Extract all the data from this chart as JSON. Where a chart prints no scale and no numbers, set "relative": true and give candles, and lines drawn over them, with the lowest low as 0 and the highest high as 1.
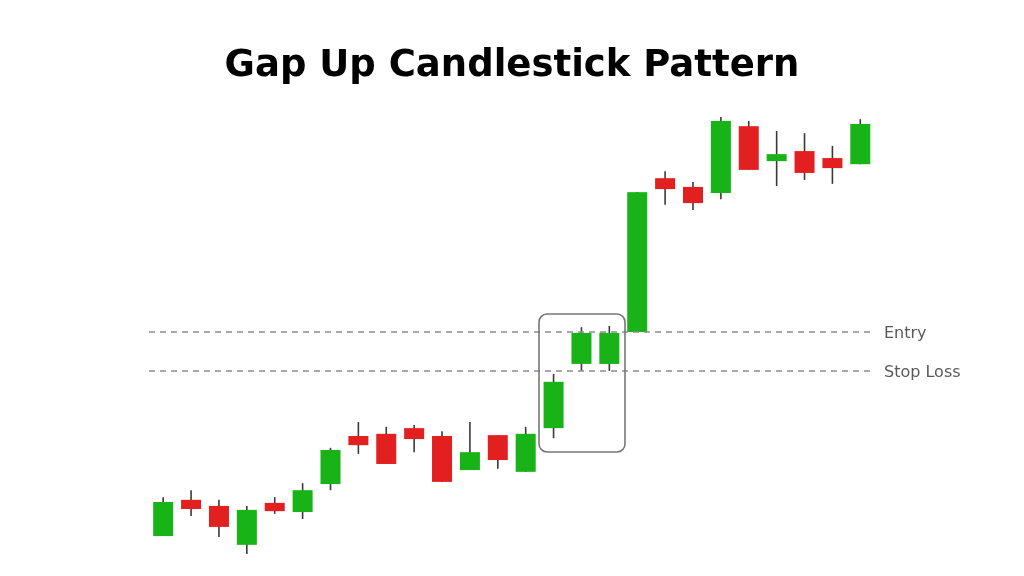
{
  "chart_data": {
    "type": "candlestick",
    "title": "Gap Up Candlestick Pattern",
    "relative": true,
    "categories": [
      null,
      null,
      null,
      null,
      null,
      null,
      null,
      null,
      null,
      null,
      null,
      null,
      null,
      null,
      null,
      null,
      null,
      null,
      null,
      null,
      null,
      null,
      null,
      null,
      null,
      null
    ],
    "ohlc": [
      [
        0.041,
        0.13,
        0.041,
        0.119
      ],
      [
        0.124,
        0.146,
        0.087,
        0.103
      ],
      [
        0.11,
        0.124,
        0.039,
        0.062
      ],
      [
        0.021,
        0.11,
        0,
        0.101
      ],
      [
        0.117,
        0.13,
        0.092,
        0.098
      ],
      [
        0.096,
        0.162,
        0.08,
        0.146
      ],
      [
        0.16,
        0.243,
        0.146,
        0.238
      ],
      [
        0.27,
        0.302,
        0.229,
        0.249
      ],
      [
        0.275,
        0.291,
        0.206,
        0.206
      ],
      [
        0.288,
        0.295,
        0.233,
        0.263
      ],
      [
        0.27,
        0.281,
        0.165,
        0.165
      ],
      [
        0.192,
        0.302,
        0.192,
        0.233
      ],
      [
        0.272,
        0.272,
        0.195,
        0.215
      ],
      [
        0.188,
        0.291,
        0.188,
        0.275
      ],
      [
        0.288,
        0.412,
        0.265,
        0.394
      ],
      [
        0.435,
        0.519,
        0.419,
        0.506
      ],
      [
        0.435,
        0.522,
        0.419,
        0.506
      ],
      [
        0.508,
        0.828,
        0.508,
        0.828
      ],
      [
        0.86,
        0.876,
        0.799,
        0.835
      ],
      [
        0.84,
        0.851,
        0.787,
        0.803
      ],
      [
        0.826,
        1,
        0.812,
        0.991
      ],
      [
        0.979,
        0.991,
        0.879,
        0.879
      ],
      [
        0.899,
        0.968,
        0.842,
        0.915
      ],
      [
        0.922,
        0.963,
        0.856,
        0.872
      ],
      [
        0.906,
        0.934,
        0.847,
        0.883
      ],
      [
        0.892,
        0.995,
        0.892,
        0.984
      ]
    ],
    "colors": [
      "#17b317",
      "#e32020",
      "#e32020",
      "#17b317",
      "#e32020",
      "#17b317",
      "#17b317",
      "#e32020",
      "#e32020",
      "#e32020",
      "#e32020",
      "#17b317",
      "#e32020",
      "#17b317",
      "#17b317",
      "#17b317",
      "#17b317",
      "#17b317",
      "#e32020",
      "#e32020",
      "#17b317",
      "#e32020",
      "#17b317",
      "#e32020",
      "#e32020",
      "#17b317"
    ],
    "ref_lines": [
      {
        "axis": "y",
        "value": 0.508,
        "label": "Entry",
        "color": "#8c8c8c",
        "line_style": "dashed"
      },
      {
        "axis": "y",
        "value": 0.419,
        "label": "Stop Loss",
        "color": "#8c8c8c",
        "line_style": "dashed"
      }
    ]
  }
}
